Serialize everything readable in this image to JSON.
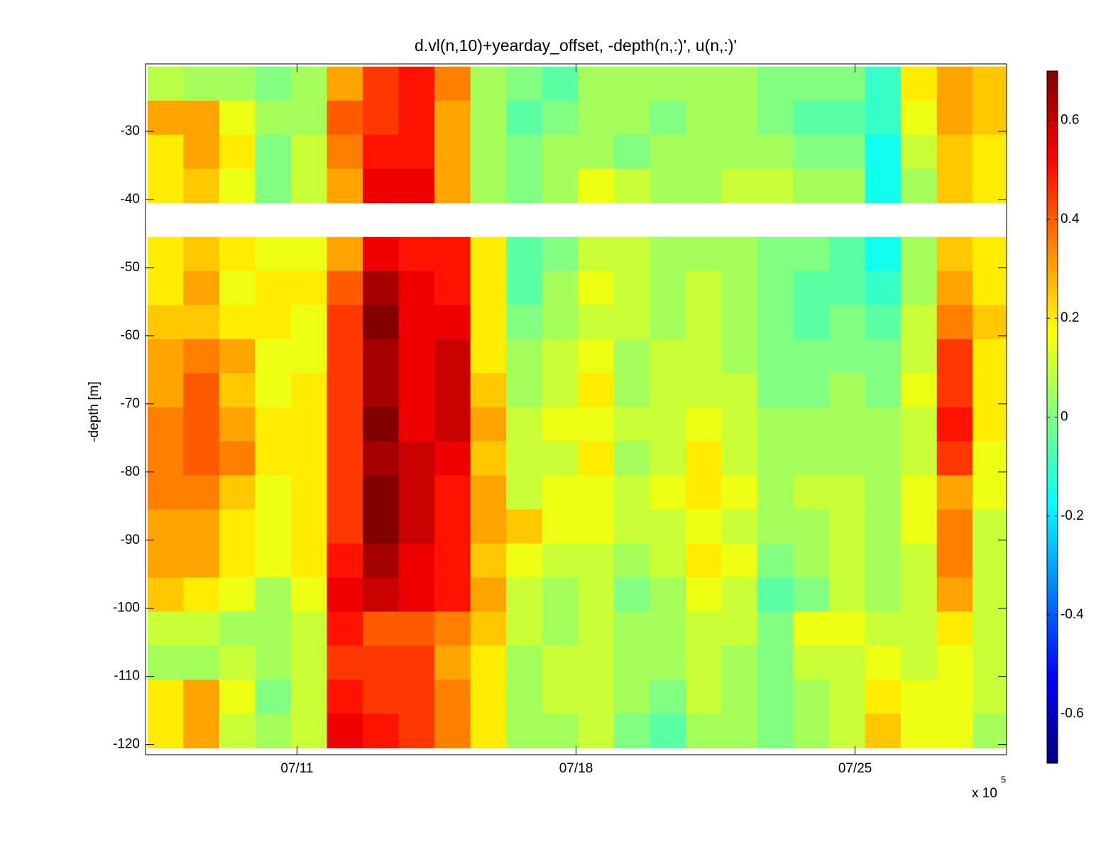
{
  "chart_data": {
    "type": "heatmap",
    "title": "d.vl(n,10)+yearday_offset, -depth(n,:)', u(n,:)'",
    "y_label": "-depth [m]",
    "x_multiplier": "x 10",
    "x_multiplier_exponent": "5",
    "colormap": "jet",
    "xlim": [
      7.2,
      28.8
    ],
    "xticks": [
      {
        "value": 11,
        "label": "07/11"
      },
      {
        "value": 18,
        "label": "07/18"
      },
      {
        "value": 25,
        "label": "07/25"
      }
    ],
    "ylim": [
      -121.5,
      -20.1
    ],
    "yticks": [
      -120,
      -110,
      -100,
      -90,
      -80,
      -70,
      -60,
      -50,
      -40,
      -30
    ],
    "clim": [
      -0.7,
      0.7
    ],
    "cticks": [
      -0.6,
      -0.4,
      -0.2,
      0,
      0.2,
      0.4,
      0.6
    ],
    "x": [
      7.7,
      8.6,
      9.5,
      10.4,
      11.3,
      12.2,
      13.1,
      14.0,
      14.9,
      15.8,
      16.7,
      17.6,
      18.5,
      19.4,
      20.3,
      21.2,
      22.1,
      23.0,
      23.9,
      24.8,
      25.7,
      26.6,
      27.5,
      28.4
    ],
    "y": [
      -23,
      -28,
      -33,
      -38,
      -43,
      -48,
      -53,
      -58,
      -63,
      -68,
      -73,
      -78,
      -83,
      -88,
      -93,
      -98,
      -103,
      -108,
      -113,
      -118
    ],
    "z": [
      [
        0.08,
        0.05,
        0.05,
        0.0,
        0.05,
        0.3,
        0.45,
        0.5,
        0.35,
        0.05,
        0,
        -0.05,
        0.05,
        0.05,
        0.05,
        0.05,
        0.05,
        0.0,
        0.0,
        0.0,
        -0.1,
        0.2,
        0.3,
        0.25
      ],
      [
        0.3,
        0.3,
        0.15,
        0.05,
        0.05,
        0.4,
        0.45,
        0.5,
        0.3,
        0.05,
        -0.05,
        0.0,
        0.05,
        0.05,
        0.0,
        0.05,
        0.05,
        0.0,
        -0.05,
        -0.05,
        -0.1,
        0.15,
        0.3,
        0.25
      ],
      [
        0.2,
        0.3,
        0.2,
        0.0,
        0.1,
        0.35,
        0.5,
        0.5,
        0.3,
        0.05,
        0.0,
        0.05,
        0.05,
        0.0,
        0.05,
        0.05,
        0.05,
        0.05,
        0.0,
        0.0,
        -0.15,
        0.1,
        0.25,
        0.2
      ],
      [
        0.2,
        0.25,
        0.15,
        0.0,
        0.1,
        0.3,
        0.55,
        0.55,
        0.3,
        0.05,
        0.0,
        0.05,
        0.15,
        0.1,
        0.05,
        0.05,
        0.1,
        0.1,
        0.05,
        0.05,
        -0.15,
        0.05,
        0.25,
        0.2
      ],
      [
        null,
        null,
        null,
        null,
        null,
        null,
        null,
        null,
        null,
        null,
        null,
        null,
        null,
        null,
        null,
        null,
        null,
        null,
        null,
        null,
        null,
        null,
        null,
        null
      ],
      [
        0.2,
        0.25,
        0.2,
        0.15,
        0.15,
        0.3,
        0.55,
        0.5,
        0.5,
        0.2,
        -0.05,
        0.0,
        0.1,
        0.1,
        0.05,
        0.05,
        0.05,
        0.0,
        0.0,
        -0.05,
        -0.15,
        0.05,
        0.25,
        0.2
      ],
      [
        0.2,
        0.3,
        0.15,
        0.2,
        0.2,
        0.4,
        0.65,
        0.55,
        0.5,
        0.2,
        -0.05,
        0.05,
        0.15,
        0.1,
        0.05,
        0.1,
        0.05,
        0.0,
        -0.05,
        -0.05,
        -0.1,
        0.05,
        0.3,
        0.2
      ],
      [
        0.25,
        0.25,
        0.2,
        0.2,
        0.15,
        0.45,
        0.7,
        0.55,
        0.55,
        0.2,
        0.0,
        0.05,
        0.1,
        0.1,
        0.05,
        0.1,
        0.05,
        0.0,
        -0.05,
        0.0,
        -0.05,
        0.1,
        0.35,
        0.25
      ],
      [
        0.3,
        0.35,
        0.3,
        0.15,
        0.15,
        0.45,
        0.65,
        0.55,
        0.6,
        0.2,
        0.05,
        0.1,
        0.15,
        0.05,
        0.1,
        0.1,
        0.05,
        0.0,
        0.0,
        0.0,
        0.0,
        0.1,
        0.45,
        0.2
      ],
      [
        0.3,
        0.4,
        0.25,
        0.15,
        0.2,
        0.45,
        0.65,
        0.55,
        0.6,
        0.25,
        0.05,
        0.1,
        0.2,
        0.05,
        0.1,
        0.1,
        0.1,
        0.0,
        0.0,
        0.05,
        0.0,
        0.15,
        0.45,
        0.2
      ],
      [
        0.35,
        0.4,
        0.3,
        0.2,
        0.2,
        0.45,
        0.7,
        0.55,
        0.6,
        0.3,
        0.1,
        0.15,
        0.15,
        0.1,
        0.1,
        0.15,
        0.1,
        0.05,
        0.05,
        0.05,
        0.05,
        0.1,
        0.5,
        0.2
      ],
      [
        0.35,
        0.4,
        0.35,
        0.2,
        0.2,
        0.45,
        0.65,
        0.6,
        0.55,
        0.25,
        0.1,
        0.1,
        0.2,
        0.05,
        0.1,
        0.2,
        0.1,
        0.05,
        0.05,
        0.05,
        0.05,
        0.1,
        0.45,
        0.15
      ],
      [
        0.35,
        0.35,
        0.25,
        0.15,
        0.2,
        0.45,
        0.7,
        0.6,
        0.5,
        0.3,
        0.1,
        0.15,
        0.15,
        0.1,
        0.15,
        0.2,
        0.15,
        0.05,
        0.1,
        0.1,
        0.05,
        0.15,
        0.3,
        0.15
      ],
      [
        0.3,
        0.3,
        0.2,
        0.15,
        0.2,
        0.45,
        0.7,
        0.6,
        0.5,
        0.3,
        0.25,
        0.15,
        0.15,
        0.1,
        0.1,
        0.15,
        0.1,
        0.05,
        0.05,
        0.1,
        0.05,
        0.15,
        0.35,
        0.1
      ],
      [
        0.3,
        0.3,
        0.2,
        0.15,
        0.2,
        0.5,
        0.65,
        0.55,
        0.5,
        0.25,
        0.15,
        0.1,
        0.1,
        0.05,
        0.1,
        0.2,
        0.15,
        0.0,
        0.05,
        0.1,
        0.05,
        0.1,
        0.35,
        0.1
      ],
      [
        0.25,
        0.2,
        0.15,
        0.05,
        0.15,
        0.55,
        0.6,
        0.55,
        0.5,
        0.3,
        0.1,
        0.05,
        0.1,
        0.0,
        0.05,
        0.15,
        0.1,
        -0.05,
        0.0,
        0.1,
        0.05,
        0.1,
        0.3,
        0.1
      ],
      [
        0.1,
        0.1,
        0.05,
        0.05,
        0.1,
        0.5,
        0.4,
        0.4,
        0.35,
        0.25,
        0.1,
        0.05,
        0.1,
        0.05,
        0.05,
        0.1,
        0.1,
        0.0,
        0.15,
        0.15,
        0.1,
        0.1,
        0.2,
        0.1
      ],
      [
        0.05,
        0.05,
        0.1,
        0.05,
        0.1,
        0.45,
        0.45,
        0.45,
        0.3,
        0.2,
        0.05,
        0.1,
        0.1,
        0.05,
        0.05,
        0.1,
        0.05,
        0.0,
        0.1,
        0.1,
        0.15,
        0.1,
        0.15,
        0.1
      ],
      [
        0.2,
        0.3,
        0.15,
        0.0,
        0.1,
        0.5,
        0.45,
        0.45,
        0.35,
        0.2,
        0.05,
        0.1,
        0.1,
        0.05,
        0.0,
        0.1,
        0.05,
        0.0,
        0.05,
        0.1,
        0.2,
        0.15,
        0.15,
        0.1
      ],
      [
        0.2,
        0.3,
        0.1,
        0.05,
        0.1,
        0.55,
        0.5,
        0.45,
        0.35,
        0.2,
        0.05,
        0.05,
        0.1,
        0.0,
        -0.05,
        0.05,
        0.05,
        0.0,
        0.05,
        0.1,
        0.25,
        0.15,
        0.15,
        0.05
      ]
    ]
  }
}
